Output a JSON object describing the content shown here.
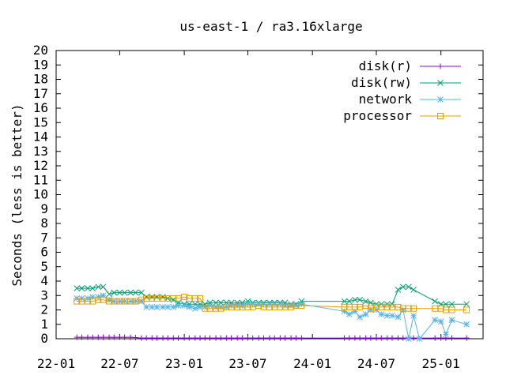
{
  "chart_data": {
    "type": "line",
    "title": "us-east-1 / ra3.16xlarge",
    "ylabel": "Seconds (less is better)",
    "xlabel": "",
    "ylim": [
      0,
      20
    ],
    "y_ticks": [
      "0",
      "1",
      "2",
      "3",
      "4",
      "5",
      "6",
      "7",
      "8",
      "9",
      "10",
      "11",
      "12",
      "13",
      "14",
      "15",
      "16",
      "17",
      "18",
      "19",
      "20"
    ],
    "x_range": [
      "2022-01-01",
      "2025-05-01"
    ],
    "x_ticks": [
      {
        "label": "22-01",
        "date": "2022-01-01"
      },
      {
        "label": "22-07",
        "date": "2022-07-01"
      },
      {
        "label": "23-01",
        "date": "2023-01-01"
      },
      {
        "label": "23-07",
        "date": "2023-07-01"
      },
      {
        "label": "24-01",
        "date": "2024-01-01"
      },
      {
        "label": "24-07",
        "date": "2024-07-01"
      },
      {
        "label": "25-01",
        "date": "2025-01-01"
      }
    ],
    "legend_position": "top-right",
    "grid": false,
    "series": [
      {
        "name": "disk(r)",
        "color": "#9400d3",
        "marker": "plus",
        "points": [
          [
            "2022-03-01",
            0.1
          ],
          [
            "2022-03-15",
            0.1
          ],
          [
            "2022-04-01",
            0.1
          ],
          [
            "2022-04-15",
            0.1
          ],
          [
            "2022-05-01",
            0.1
          ],
          [
            "2022-05-15",
            0.1
          ],
          [
            "2022-06-01",
            0.1
          ],
          [
            "2022-06-15",
            0.1
          ],
          [
            "2022-07-01",
            0.1
          ],
          [
            "2022-07-15",
            0.1
          ],
          [
            "2022-08-01",
            0.1
          ],
          [
            "2022-08-15",
            0.08
          ],
          [
            "2022-09-01",
            0.05
          ],
          [
            "2022-09-15",
            0.05
          ],
          [
            "2022-10-01",
            0.05
          ],
          [
            "2022-10-15",
            0.05
          ],
          [
            "2022-11-01",
            0.05
          ],
          [
            "2022-11-15",
            0.05
          ],
          [
            "2022-12-01",
            0.05
          ],
          [
            "2022-12-15",
            0.05
          ],
          [
            "2023-01-01",
            0.05
          ],
          [
            "2023-01-15",
            0.05
          ],
          [
            "2023-02-01",
            0.05
          ],
          [
            "2023-02-15",
            0.05
          ],
          [
            "2023-03-01",
            0.05
          ],
          [
            "2023-03-15",
            0.05
          ],
          [
            "2023-04-01",
            0.05
          ],
          [
            "2023-04-15",
            0.05
          ],
          [
            "2023-05-01",
            0.05
          ],
          [
            "2023-05-15",
            0.05
          ],
          [
            "2023-06-01",
            0.05
          ],
          [
            "2023-06-15",
            0.05
          ],
          [
            "2023-07-01",
            0.05
          ],
          [
            "2023-07-15",
            0.05
          ],
          [
            "2023-08-01",
            0.05
          ],
          [
            "2023-08-15",
            0.05
          ],
          [
            "2023-09-01",
            0.05
          ],
          [
            "2023-09-15",
            0.05
          ],
          [
            "2023-10-01",
            0.05
          ],
          [
            "2023-10-15",
            0.05
          ],
          [
            "2023-11-01",
            0.05
          ],
          [
            "2023-11-15",
            0.05
          ],
          [
            "2023-12-01",
            0.05
          ],
          [
            "2024-04-01",
            0.05
          ],
          [
            "2024-04-15",
            0.05
          ],
          [
            "2024-05-01",
            0.05
          ],
          [
            "2024-05-15",
            0.05
          ],
          [
            "2024-06-01",
            0.05
          ],
          [
            "2024-06-15",
            0.05
          ],
          [
            "2024-07-01",
            0.05
          ],
          [
            "2024-07-15",
            0.05
          ],
          [
            "2024-08-01",
            0.05
          ],
          [
            "2024-08-15",
            0.05
          ],
          [
            "2024-09-01",
            0.05
          ],
          [
            "2024-09-15",
            0.05
          ],
          [
            "2024-10-01",
            0.05
          ],
          [
            "2024-10-15",
            0.05
          ],
          [
            "2024-12-15",
            0.05
          ],
          [
            "2025-01-01",
            0.05
          ],
          [
            "2025-01-15",
            0.05
          ],
          [
            "2025-02-01",
            0.05
          ],
          [
            "2025-03-15",
            0.05
          ]
        ]
      },
      {
        "name": "disk(rw)",
        "color": "#009e73",
        "marker": "cross",
        "points": [
          [
            "2022-03-01",
            3.5
          ],
          [
            "2022-03-15",
            3.5
          ],
          [
            "2022-04-01",
            3.5
          ],
          [
            "2022-04-15",
            3.5
          ],
          [
            "2022-05-01",
            3.6
          ],
          [
            "2022-05-15",
            3.6
          ],
          [
            "2022-06-01",
            3.1
          ],
          [
            "2022-06-15",
            3.2
          ],
          [
            "2022-07-01",
            3.2
          ],
          [
            "2022-07-15",
            3.2
          ],
          [
            "2022-08-01",
            3.2
          ],
          [
            "2022-08-15",
            3.2
          ],
          [
            "2022-09-01",
            3.2
          ],
          [
            "2022-09-15",
            2.9
          ],
          [
            "2022-10-01",
            2.9
          ],
          [
            "2022-10-15",
            2.9
          ],
          [
            "2022-11-01",
            2.9
          ],
          [
            "2022-11-15",
            2.8
          ],
          [
            "2022-12-01",
            2.7
          ],
          [
            "2022-12-15",
            2.5
          ],
          [
            "2023-01-01",
            2.4
          ],
          [
            "2023-01-15",
            2.4
          ],
          [
            "2023-02-01",
            2.4
          ],
          [
            "2023-02-15",
            2.4
          ],
          [
            "2023-03-01",
            2.4
          ],
          [
            "2023-03-15",
            2.5
          ],
          [
            "2023-04-01",
            2.5
          ],
          [
            "2023-04-15",
            2.5
          ],
          [
            "2023-05-01",
            2.5
          ],
          [
            "2023-05-15",
            2.5
          ],
          [
            "2023-06-01",
            2.5
          ],
          [
            "2023-06-15",
            2.5
          ],
          [
            "2023-07-01",
            2.6
          ],
          [
            "2023-07-15",
            2.5
          ],
          [
            "2023-08-01",
            2.5
          ],
          [
            "2023-08-15",
            2.5
          ],
          [
            "2023-09-01",
            2.5
          ],
          [
            "2023-09-15",
            2.5
          ],
          [
            "2023-10-01",
            2.5
          ],
          [
            "2023-10-15",
            2.5
          ],
          [
            "2023-11-01",
            2.4
          ],
          [
            "2023-11-15",
            2.4
          ],
          [
            "2023-12-01",
            2.6
          ],
          [
            "2024-04-01",
            2.6
          ],
          [
            "2024-04-15",
            2.6
          ],
          [
            "2024-05-01",
            2.7
          ],
          [
            "2024-05-15",
            2.7
          ],
          [
            "2024-06-01",
            2.6
          ],
          [
            "2024-06-15",
            2.5
          ],
          [
            "2024-07-01",
            2.4
          ],
          [
            "2024-07-15",
            2.4
          ],
          [
            "2024-08-01",
            2.4
          ],
          [
            "2024-08-15",
            2.4
          ],
          [
            "2024-09-01",
            3.4
          ],
          [
            "2024-09-15",
            3.6
          ],
          [
            "2024-10-01",
            3.6
          ],
          [
            "2024-10-15",
            3.4
          ],
          [
            "2024-12-15",
            2.6
          ],
          [
            "2025-01-01",
            2.4
          ],
          [
            "2025-01-15",
            2.4
          ],
          [
            "2025-02-01",
            2.4
          ],
          [
            "2025-03-15",
            2.4
          ]
        ]
      },
      {
        "name": "network",
        "color": "#56b4e9",
        "marker": "star",
        "points": [
          [
            "2022-03-01",
            2.8
          ],
          [
            "2022-03-15",
            2.8
          ],
          [
            "2022-04-01",
            2.8
          ],
          [
            "2022-04-15",
            2.9
          ],
          [
            "2022-05-01",
            2.9
          ],
          [
            "2022-05-15",
            3.0
          ],
          [
            "2022-06-01",
            2.7
          ],
          [
            "2022-06-15",
            2.6
          ],
          [
            "2022-07-01",
            2.6
          ],
          [
            "2022-07-15",
            2.6
          ],
          [
            "2022-08-01",
            2.6
          ],
          [
            "2022-08-15",
            2.6
          ],
          [
            "2022-09-01",
            2.6
          ],
          [
            "2022-09-15",
            2.2
          ],
          [
            "2022-10-01",
            2.2
          ],
          [
            "2022-10-15",
            2.2
          ],
          [
            "2022-11-01",
            2.2
          ],
          [
            "2022-11-15",
            2.2
          ],
          [
            "2022-12-01",
            2.2
          ],
          [
            "2022-12-15",
            2.3
          ],
          [
            "2023-01-01",
            2.3
          ],
          [
            "2023-01-15",
            2.2
          ],
          [
            "2023-02-01",
            2.1
          ],
          [
            "2023-02-15",
            2.2
          ],
          [
            "2023-03-01",
            2.2
          ],
          [
            "2023-03-15",
            2.3
          ],
          [
            "2023-04-01",
            2.2
          ],
          [
            "2023-04-15",
            2.2
          ],
          [
            "2023-05-01",
            2.2
          ],
          [
            "2023-05-15",
            2.3
          ],
          [
            "2023-06-01",
            2.3
          ],
          [
            "2023-06-15",
            2.3
          ],
          [
            "2023-07-01",
            2.4
          ],
          [
            "2023-07-15",
            2.4
          ],
          [
            "2023-08-01",
            2.4
          ],
          [
            "2023-08-15",
            2.4
          ],
          [
            "2023-09-01",
            2.4
          ],
          [
            "2023-09-15",
            2.4
          ],
          [
            "2023-10-01",
            2.4
          ],
          [
            "2023-10-15",
            2.3
          ],
          [
            "2023-11-01",
            2.3
          ],
          [
            "2023-11-15",
            2.3
          ],
          [
            "2023-12-01",
            2.4
          ],
          [
            "2024-04-01",
            1.9
          ],
          [
            "2024-04-15",
            1.7
          ],
          [
            "2024-05-01",
            1.9
          ],
          [
            "2024-05-15",
            1.5
          ],
          [
            "2024-06-01",
            1.7
          ],
          [
            "2024-06-15",
            2.0
          ],
          [
            "2024-07-01",
            2.0
          ],
          [
            "2024-07-15",
            1.7
          ],
          [
            "2024-08-01",
            1.6
          ],
          [
            "2024-08-15",
            1.6
          ],
          [
            "2024-09-01",
            1.5
          ],
          [
            "2024-09-15",
            2.0
          ],
          [
            "2024-10-01",
            0.0
          ],
          [
            "2024-10-15",
            1.6
          ],
          [
            "2024-11-01",
            0.0
          ],
          [
            "2024-12-15",
            1.3
          ],
          [
            "2025-01-01",
            1.2
          ],
          [
            "2025-01-15",
            0.3
          ],
          [
            "2025-02-01",
            1.3
          ],
          [
            "2025-03-15",
            1.0
          ]
        ]
      },
      {
        "name": "processor",
        "color": "#e69f00",
        "marker": "square",
        "points": [
          [
            "2022-03-01",
            2.6
          ],
          [
            "2022-03-15",
            2.6
          ],
          [
            "2022-04-01",
            2.6
          ],
          [
            "2022-04-15",
            2.6
          ],
          [
            "2022-05-01",
            2.7
          ],
          [
            "2022-05-15",
            2.7
          ],
          [
            "2022-06-01",
            2.6
          ],
          [
            "2022-06-15",
            2.6
          ],
          [
            "2022-07-01",
            2.6
          ],
          [
            "2022-07-15",
            2.6
          ],
          [
            "2022-08-01",
            2.6
          ],
          [
            "2022-08-15",
            2.6
          ],
          [
            "2022-09-01",
            2.7
          ],
          [
            "2022-09-15",
            2.8
          ],
          [
            "2022-10-01",
            2.8
          ],
          [
            "2022-10-15",
            2.8
          ],
          [
            "2022-11-01",
            2.8
          ],
          [
            "2022-11-15",
            2.8
          ],
          [
            "2022-12-01",
            2.8
          ],
          [
            "2022-12-15",
            2.8
          ],
          [
            "2023-01-01",
            2.9
          ],
          [
            "2023-01-15",
            2.8
          ],
          [
            "2023-02-01",
            2.8
          ],
          [
            "2023-02-15",
            2.8
          ],
          [
            "2023-03-01",
            2.1
          ],
          [
            "2023-03-15",
            2.1
          ],
          [
            "2023-04-01",
            2.1
          ],
          [
            "2023-04-15",
            2.1
          ],
          [
            "2023-05-01",
            2.2
          ],
          [
            "2023-05-15",
            2.2
          ],
          [
            "2023-06-01",
            2.2
          ],
          [
            "2023-06-15",
            2.2
          ],
          [
            "2023-07-01",
            2.2
          ],
          [
            "2023-07-15",
            2.2
          ],
          [
            "2023-08-01",
            2.3
          ],
          [
            "2023-08-15",
            2.2
          ],
          [
            "2023-09-01",
            2.2
          ],
          [
            "2023-09-15",
            2.2
          ],
          [
            "2023-10-01",
            2.2
          ],
          [
            "2023-10-15",
            2.2
          ],
          [
            "2023-11-01",
            2.2
          ],
          [
            "2023-11-15",
            2.3
          ],
          [
            "2023-12-01",
            2.3
          ],
          [
            "2024-04-01",
            2.2
          ],
          [
            "2024-04-15",
            2.2
          ],
          [
            "2024-05-01",
            2.2
          ],
          [
            "2024-05-15",
            2.2
          ],
          [
            "2024-06-01",
            2.3
          ],
          [
            "2024-06-15",
            2.1
          ],
          [
            "2024-07-01",
            2.2
          ],
          [
            "2024-07-15",
            2.2
          ],
          [
            "2024-08-01",
            2.2
          ],
          [
            "2024-08-15",
            2.2
          ],
          [
            "2024-09-01",
            2.2
          ],
          [
            "2024-09-15",
            2.1
          ],
          [
            "2024-10-01",
            2.1
          ],
          [
            "2024-10-15",
            2.1
          ],
          [
            "2024-12-15",
            2.1
          ],
          [
            "2025-01-01",
            2.1
          ],
          [
            "2025-01-15",
            2.0
          ],
          [
            "2025-02-01",
            2.0
          ],
          [
            "2025-03-15",
            2.0
          ]
        ]
      }
    ]
  }
}
